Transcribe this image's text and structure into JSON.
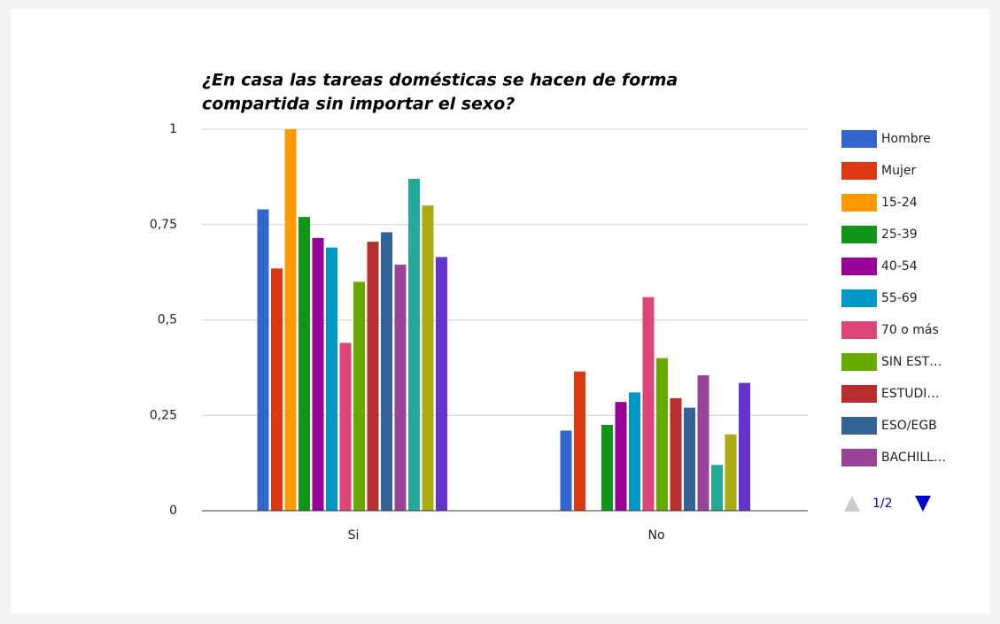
{
  "chart_data": {
    "type": "bar",
    "title": [
      "¿En casa las tareas domésticas se hacen de forma",
      "compartida sin importar el sexo?"
    ],
    "categories": [
      "Si",
      "No"
    ],
    "ylim": [
      0,
      1
    ],
    "yticks": [
      0,
      {
        "value": 0.25,
        "label": "0,25"
      },
      {
        "value": 0.5,
        "label": "0,5"
      },
      {
        "value": 0.75,
        "label": "0,75"
      },
      1
    ],
    "grid": true,
    "legend_page": "1/2",
    "series": [
      {
        "name": "Hombre",
        "color": "#3366cc",
        "values": [
          0.79,
          0.21
        ]
      },
      {
        "name": "Mujer",
        "color": "#dc3912",
        "values": [
          0.635,
          0.365
        ]
      },
      {
        "name": "15-24",
        "color": "#ff9900",
        "values": [
          1.0,
          0
        ]
      },
      {
        "name": "25-39",
        "color": "#109618",
        "values": [
          0.77,
          0.225
        ]
      },
      {
        "name": "40-54",
        "color": "#990099",
        "values": [
          0.715,
          0.285
        ]
      },
      {
        "name": "55-69",
        "color": "#0099c6",
        "values": [
          0.69,
          0.31
        ]
      },
      {
        "name": "70 o más",
        "color": "#dd4477",
        "values": [
          0.44,
          0.56
        ]
      },
      {
        "name": "SIN EST…",
        "color": "#66aa00",
        "values": [
          0.6,
          0.4
        ]
      },
      {
        "name": "ESTUDI…",
        "color": "#b82e2e",
        "values": [
          0.705,
          0.295
        ]
      },
      {
        "name": "ESO/EGB",
        "color": "#316395",
        "values": [
          0.73,
          0.27
        ]
      },
      {
        "name": "BACHILL…",
        "color": "#994499",
        "values": [
          0.645,
          0.355
        ]
      },
      {
        "color": "#22aa99",
        "values": [
          0.87,
          0.12
        ]
      },
      {
        "color": "#aaaa11",
        "values": [
          0.8,
          0.2
        ]
      },
      {
        "color": "#6633cc",
        "values": [
          0.665,
          0.335
        ]
      }
    ]
  }
}
